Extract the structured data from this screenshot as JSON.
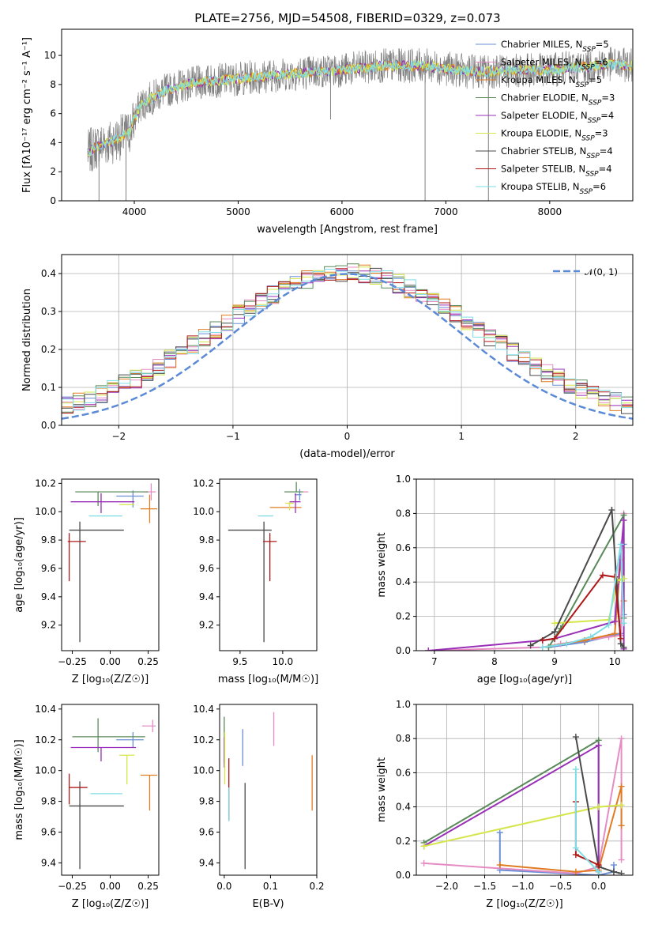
{
  "title": "PLATE=2756, MJD=54508, FIBERID=0329, z=0.073",
  "colors": {
    "Chabrier MILES": "#6a8fd6",
    "Salpeter MILES": "#e58cc4",
    "Kroupa MILES": "#e07b21",
    "Chabrier ELODIE": "#5a8a5a",
    "Salpeter ELODIE": "#9a2fb8",
    "Kroupa ELODIE": "#d4e64a",
    "Chabrier STELIB": "#4a4a4a",
    "Salpeter STELIB": "#b01818",
    "Kroupa STELIB": "#7fdde6",
    "data": "#808080",
    "gauss": "#5b8ad6",
    "grid": "#b0b0b0"
  },
  "chart_data": [
    {
      "id": "spectrum",
      "type": "line",
      "xlabel": "wavelength [Angstrom, rest frame]",
      "ylabel": "Flux [fλ10⁻¹⁷ erg cm⁻² s⁻¹ A⁻¹]",
      "xlim": [
        3300,
        8800
      ],
      "ylim": [
        0,
        11.8
      ],
      "xticks": [
        4000,
        5000,
        6000,
        7000,
        8000
      ],
      "yticks": [
        0,
        2,
        4,
        6,
        8,
        10
      ],
      "grid": false,
      "legend_position": "right",
      "legend": [
        "Chabrier MILES, N_SSP=5",
        "Salpeter MILES, N_SSP=6",
        "Kroupa MILES, N_SSP=5",
        "Chabrier ELODIE, N_SSP=3",
        "Salpeter ELODIE, N_SSP=4",
        "Kroupa ELODIE, N_SSP=3",
        "Chabrier STELIB, N_SSP=4",
        "Salpeter STELIB, N_SSP=4",
        "Kroupa STELIB, N_SSP=6"
      ],
      "continuum": {
        "x": [
          3550,
          3650,
          3750,
          3850,
          3950,
          4050,
          4150,
          4300,
          4500,
          4700,
          5000,
          5300,
          5600,
          6000,
          6400,
          6800,
          7000,
          7200,
          7400,
          7600,
          7800,
          8000,
          8300,
          8600,
          8800
        ],
        "y": [
          3.3,
          3.8,
          4.0,
          4.3,
          4.7,
          6.5,
          7.0,
          7.6,
          8.0,
          8.2,
          8.4,
          8.6,
          8.8,
          9.0,
          9.3,
          9.3,
          9.1,
          8.9,
          8.9,
          8.9,
          9.0,
          9.0,
          9.2,
          9.4,
          9.3
        ]
      }
    },
    {
      "id": "residuals",
      "type": "bar",
      "xlabel": "(data-model)/error",
      "ylabel": "Normed distribution",
      "xlim": [
        -2.5,
        2.5
      ],
      "ylim": [
        0,
        0.45
      ],
      "xticks": [
        -2,
        -1,
        0,
        1,
        2
      ],
      "yticks": [
        0.0,
        0.1,
        0.2,
        0.3,
        0.4
      ],
      "grid": true,
      "legend_position": "top-right",
      "legend": [
        "𝒩(0, 1)"
      ],
      "bin_width": 0.1
    },
    {
      "id": "age_vs_Z",
      "type": "scatter",
      "xlabel": "Z [log₁₀(Z/Z☉)]",
      "ylabel": "age  [log₁₀(age/yr)]",
      "xlim": [
        -0.32,
        0.32
      ],
      "ylim": [
        9.02,
        10.23
      ],
      "xticks": [
        -0.25,
        0.0,
        0.25
      ],
      "xticklabels": [
        "−0.25",
        "0.00",
        "0.25"
      ],
      "yticks": [
        9.2,
        9.4,
        9.6,
        9.8,
        10.0,
        10.2
      ],
      "points": [
        {
          "series": "Chabrier MILES",
          "x": 0.15,
          "y": 10.11,
          "xerr": [
            0.11,
            0.07
          ],
          "yerr": [
            0.08,
            0.04
          ]
        },
        {
          "series": "Salpeter MILES",
          "x": 0.27,
          "y": 10.14,
          "xerr": [
            0.05,
            0.03
          ],
          "yerr": [
            0.06,
            0.06
          ]
        },
        {
          "series": "Kroupa MILES",
          "x": 0.26,
          "y": 10.02,
          "xerr": [
            0.06,
            0.05
          ],
          "yerr": [
            0.1,
            0.1
          ]
        },
        {
          "series": "Chabrier ELODIE",
          "x": -0.08,
          "y": 10.14,
          "xerr": [
            0.15,
            0.33
          ],
          "yerr": [
            0.1,
            0.0
          ]
        },
        {
          "series": "Salpeter ELODIE",
          "x": -0.06,
          "y": 10.07,
          "xerr": [
            0.2,
            0.22
          ],
          "yerr": [
            0.08,
            0.06
          ]
        },
        {
          "series": "Kroupa ELODIE",
          "x": 0.11,
          "y": 10.05,
          "xerr": [
            0.05,
            0.05
          ],
          "yerr": [
            0.0,
            0.0
          ]
        },
        {
          "series": "Chabrier STELIB",
          "x": -0.2,
          "y": 9.87,
          "xerr": [
            0.07,
            0.29
          ],
          "yerr": [
            0.79,
            0.06
          ]
        },
        {
          "series": "Salpeter STELIB",
          "x": -0.27,
          "y": 9.79,
          "xerr": [
            0.01,
            0.11
          ],
          "yerr": [
            0.28,
            0.06
          ]
        },
        {
          "series": "Kroupa STELIB",
          "x": 0.03,
          "y": 9.97,
          "xerr": [
            0.17,
            0.05
          ],
          "yerr": [
            0.0,
            0.0
          ]
        }
      ]
    },
    {
      "id": "age_vs_mass",
      "type": "scatter",
      "xlabel": "mass [log₁₀(M/M☉)]",
      "ylabel": "",
      "xlim": [
        9.26,
        10.4
      ],
      "ylim": [
        9.02,
        10.23
      ],
      "xticks": [
        9.5,
        10.0
      ],
      "yticks": [
        9.2,
        9.4,
        9.6,
        9.8,
        10.0,
        10.2
      ],
      "points": [
        {
          "series": "Chabrier MILES",
          "x": 10.2,
          "y": 10.12,
          "xerr": [
            0.06,
            0.02
          ],
          "yerr": [
            0.04,
            0.04
          ]
        },
        {
          "series": "Salpeter MILES",
          "x": 10.3,
          "y": 10.14,
          "xerr": [
            0.06,
            0.0
          ],
          "yerr": [
            0.0,
            0.0
          ]
        },
        {
          "series": "Kroupa MILES",
          "x": 9.92,
          "y": 10.03,
          "xerr": [
            0.07,
            0.3
          ],
          "yerr": [
            0.0,
            0.0
          ]
        },
        {
          "series": "Chabrier ELODIE",
          "x": 10.16,
          "y": 10.14,
          "xerr": [
            0.14,
            0.08
          ],
          "yerr": [
            0.0,
            0.07
          ]
        },
        {
          "series": "Salpeter ELODIE",
          "x": 10.15,
          "y": 10.07,
          "xerr": [
            0.07,
            0.06
          ],
          "yerr": [
            0.08,
            0.06
          ]
        },
        {
          "series": "Kroupa ELODIE",
          "x": 10.08,
          "y": 10.06,
          "xerr": [
            0.05,
            0.05
          ],
          "yerr": [
            0.05,
            0.01
          ]
        },
        {
          "series": "Chabrier STELIB",
          "x": 9.78,
          "y": 9.87,
          "xerr": [
            0.42,
            0.09
          ],
          "yerr": [
            0.79,
            0.06
          ]
        },
        {
          "series": "Salpeter STELIB",
          "x": 9.85,
          "y": 9.79,
          "xerr": [
            0.08,
            0.08
          ],
          "yerr": [
            0.28,
            0.06
          ]
        },
        {
          "series": "Kroupa STELIB",
          "x": 9.79,
          "y": 9.97,
          "xerr": [
            0.08,
            0.1
          ],
          "yerr": [
            0.0,
            0.0
          ]
        }
      ]
    },
    {
      "id": "massweight_vs_age",
      "type": "line",
      "xlabel": "age  [log₁₀(age/yr)]",
      "ylabel": "mass weight",
      "xlim": [
        6.7,
        10.3
      ],
      "ylim": [
        0,
        1.0
      ],
      "xticks": [
        7,
        8,
        9,
        10
      ],
      "yticks": [
        0.0,
        0.2,
        0.4,
        0.6,
        0.8,
        1.0
      ],
      "grid": true,
      "series": [
        {
          "name": "Chabrier MILES",
          "x": [
            8.9,
            9.5,
            10.1,
            10.15,
            10.15
          ],
          "y": [
            0.02,
            0.05,
            0.1,
            0.62,
            0.21
          ]
        },
        {
          "name": "Salpeter MILES",
          "x": [
            6.9,
            8.8,
            9.1,
            9.5,
            9.9,
            10.1,
            10.15
          ],
          "y": [
            0.0,
            0.02,
            0.04,
            0.06,
            0.08,
            0.09,
            0.8
          ]
        },
        {
          "name": "Kroupa MILES",
          "x": [
            8.8,
            9.5,
            10.0,
            10.1,
            10.15
          ],
          "y": [
            0.02,
            0.06,
            0.1,
            0.53,
            0.29
          ]
        },
        {
          "name": "Chabrier ELODIE",
          "x": [
            8.9,
            9.1,
            10.15,
            10.15
          ],
          "y": [
            0.02,
            0.13,
            0.79,
            0.19
          ]
        },
        {
          "name": "Salpeter ELODIE",
          "x": [
            6.9,
            8.8,
            9.0,
            10.0,
            10.15,
            10.15
          ],
          "y": [
            0.0,
            0.06,
            0.07,
            0.17,
            0.76,
            0.01
          ]
        },
        {
          "name": "Kroupa ELODIE",
          "x": [
            9.0,
            9.9,
            10.05,
            10.15,
            10.15
          ],
          "y": [
            0.16,
            0.18,
            0.41,
            0.42,
            0.42
          ]
        },
        {
          "name": "Chabrier STELIB",
          "x": [
            8.6,
            9.0,
            9.95,
            10.1,
            10.15
          ],
          "y": [
            0.03,
            0.11,
            0.82,
            0.04,
            0.02
          ]
        },
        {
          "name": "Salpeter STELIB",
          "x": [
            8.8,
            9.0,
            9.8,
            10.0,
            10.1
          ],
          "y": [
            0.06,
            0.07,
            0.44,
            0.43,
            0.07
          ]
        },
        {
          "name": "Kroupa STELIB",
          "x": [
            8.8,
            9.2,
            9.6,
            9.9,
            10.1,
            10.15
          ],
          "y": [
            0.02,
            0.04,
            0.08,
            0.15,
            0.62,
            0.16
          ]
        }
      ]
    },
    {
      "id": "mass_vs_Z",
      "type": "scatter",
      "xlabel": "Z [log₁₀(Z/Z☉)]",
      "ylabel": "mass [log₁₀(M/M☉)]",
      "xlim": [
        -0.32,
        0.32
      ],
      "ylim": [
        9.32,
        10.43
      ],
      "xticks": [
        -0.25,
        0.0,
        0.25
      ],
      "xticklabels": [
        "−0.25",
        "0.00",
        "0.25"
      ],
      "yticks": [
        9.4,
        9.6,
        9.8,
        10.0,
        10.2,
        10.4
      ],
      "points": [
        {
          "series": "Chabrier MILES",
          "x": 0.15,
          "y": 10.2,
          "xerr": [
            0.11,
            0.07
          ],
          "yerr": [
            0.05,
            0.05
          ]
        },
        {
          "series": "Salpeter MILES",
          "x": 0.28,
          "y": 10.29,
          "xerr": [
            0.07,
            0.02
          ],
          "yerr": [
            0.04,
            0.04
          ]
        },
        {
          "series": "Kroupa MILES",
          "x": 0.26,
          "y": 9.97,
          "xerr": [
            0.06,
            0.05
          ],
          "yerr": [
            0.23,
            0.0
          ]
        },
        {
          "series": "Chabrier ELODIE",
          "x": -0.08,
          "y": 10.22,
          "xerr": [
            0.17,
            0.31
          ],
          "yerr": [
            0.1,
            0.12
          ]
        },
        {
          "series": "Salpeter ELODIE",
          "x": -0.06,
          "y": 10.15,
          "xerr": [
            0.2,
            0.23
          ],
          "yerr": [
            0.09,
            0.0
          ]
        },
        {
          "series": "Kroupa ELODIE",
          "x": 0.11,
          "y": 10.1,
          "xerr": [
            0.05,
            0.05
          ],
          "yerr": [
            0.19,
            0.0
          ]
        },
        {
          "series": "Chabrier STELIB",
          "x": -0.2,
          "y": 9.77,
          "xerr": [
            0.07,
            0.29
          ],
          "yerr": [
            0.41,
            0.16
          ]
        },
        {
          "series": "Salpeter STELIB",
          "x": -0.27,
          "y": 9.89,
          "xerr": [
            0.0,
            0.12
          ],
          "yerr": [
            0.11,
            0.09
          ]
        },
        {
          "series": "Kroupa STELIB",
          "x": 0.03,
          "y": 9.85,
          "xerr": [
            0.16,
            0.05
          ],
          "yerr": [
            0.0,
            0.0
          ]
        }
      ]
    },
    {
      "id": "mass_vs_EBV",
      "type": "scatter",
      "xlabel": "E(B-V)",
      "ylabel": "",
      "xlim": [
        -0.01,
        0.2
      ],
      "ylim": [
        9.32,
        10.43
      ],
      "xticks": [
        0.0,
        0.1,
        0.2
      ],
      "xticklabels": [
        "0.0",
        "0.1",
        "0.2"
      ],
      "yticks": [
        9.4,
        9.6,
        9.8,
        10.0,
        10.2,
        10.4
      ],
      "points": [
        {
          "series": "Chabrier MILES",
          "x": 0.04,
          "y": 10.15,
          "yerr": [
            0.12,
            0.12
          ]
        },
        {
          "series": "Salpeter MILES",
          "x": 0.107,
          "y": 10.27,
          "yerr": [
            0.11,
            0.11
          ]
        },
        {
          "series": "Kroupa MILES",
          "x": 0.19,
          "y": 9.92,
          "yerr": [
            0.18,
            0.18
          ]
        },
        {
          "series": "Chabrier ELODIE",
          "x": 0.0,
          "y": 10.2,
          "yerr": [
            0.15,
            0.15
          ]
        },
        {
          "series": "Salpeter ELODIE",
          "x": 0.0,
          "y": 10.12,
          "yerr": [
            0.1,
            0.1
          ]
        },
        {
          "series": "Kroupa ELODIE",
          "x": 0.001,
          "y": 10.08,
          "yerr": [
            0.17,
            0.17
          ]
        },
        {
          "series": "Chabrier STELIB",
          "x": 0.045,
          "y": 9.64,
          "yerr": [
            0.28,
            0.28
          ]
        },
        {
          "series": "Salpeter STELIB",
          "x": 0.01,
          "y": 9.88,
          "yerr": [
            0.2,
            0.2
          ]
        },
        {
          "series": "Kroupa STELIB",
          "x": 0.01,
          "y": 9.78,
          "yerr": [
            0.11,
            0.11
          ]
        }
      ]
    },
    {
      "id": "massweight_vs_Z",
      "type": "line",
      "xlabel": "Z [log₁₀(Z/Z☉)]",
      "ylabel": "mass weight",
      "xlim": [
        -2.4,
        0.45
      ],
      "ylim": [
        0,
        1.0
      ],
      "xticks": [
        -2.0,
        -1.5,
        -1.0,
        -0.5,
        0.0
      ],
      "xticklabels": [
        "−2.0",
        "−1.5",
        "−1.0",
        "−0.5",
        "0.0"
      ],
      "yticks": [
        0.0,
        0.2,
        0.4,
        0.6,
        0.8,
        1.0
      ],
      "grid": true,
      "series": [
        {
          "name": "Chabrier MILES",
          "x": [
            -1.3,
            -1.3,
            0.0,
            0.2,
            0.2
          ],
          "y": [
            0.25,
            0.03,
            0.0,
            0.02,
            0.06
          ]
        },
        {
          "name": "Salpeter MILES",
          "x": [
            -2.3,
            -0.3,
            0.0,
            0.3,
            0.3
          ],
          "y": [
            0.07,
            0.01,
            0.05,
            0.8,
            0.09
          ]
        },
        {
          "name": "Kroupa MILES",
          "x": [
            -1.3,
            -0.3,
            0.0,
            0.3,
            0.3
          ],
          "y": [
            0.06,
            0.02,
            0.03,
            0.52,
            0.29
          ]
        },
        {
          "name": "Chabrier ELODIE",
          "x": [
            -2.3,
            0.0,
            0.0
          ],
          "y": [
            0.19,
            0.79,
            0.02
          ]
        },
        {
          "name": "Salpeter ELODIE",
          "x": [
            -2.3,
            0.0,
            0.0
          ],
          "y": [
            0.17,
            0.76,
            0.02
          ]
        },
        {
          "name": "Kroupa ELODIE",
          "x": [
            -2.3,
            0.0,
            0.3
          ],
          "y": [
            0.17,
            0.4,
            0.41
          ]
        },
        {
          "name": "Chabrier STELIB",
          "x": [
            -0.3,
            0.0,
            0.2,
            0.3
          ],
          "y": [
            0.81,
            0.05,
            0.02,
            0.01
          ]
        },
        {
          "name": "Salpeter STELIB",
          "x": [
            -0.3,
            -0.3,
            0.0,
            0.0
          ],
          "y": [
            0.43,
            0.12,
            0.06,
            0.0
          ]
        },
        {
          "name": "Kroupa STELIB",
          "x": [
            -0.3,
            -0.3,
            0.0,
            0.0
          ],
          "y": [
            0.62,
            0.16,
            0.02,
            0.0
          ]
        }
      ]
    }
  ]
}
